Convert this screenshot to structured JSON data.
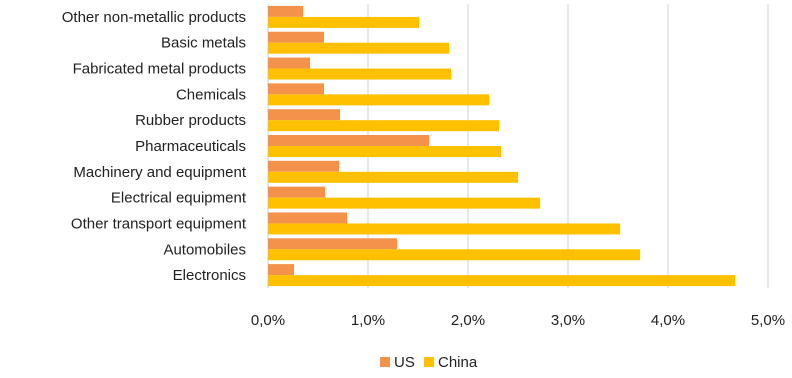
{
  "chart_data": {
    "type": "bar",
    "orientation": "horizontal",
    "categories": [
      "Other non-metallic products",
      "Basic metals",
      "Fabricated metal products",
      "Chemicals",
      "Rubber products",
      "Pharmaceuticals",
      "Machinery and equipment",
      "Electrical equipment",
      "Other transport equipment",
      "Automobiles",
      "Electronics"
    ],
    "series": [
      {
        "name": "US",
        "color": "#F4924B",
        "values": [
          0.35,
          0.56,
          0.42,
          0.56,
          0.72,
          1.61,
          0.71,
          0.57,
          0.79,
          1.29,
          0.26
        ]
      },
      {
        "name": "China",
        "color": "#FFC000",
        "values": [
          1.51,
          1.81,
          1.83,
          2.21,
          2.31,
          2.33,
          2.5,
          2.72,
          3.52,
          3.72,
          4.67
        ]
      }
    ],
    "x_ticks": [
      "0,0%",
      "1,0%",
      "2,0%",
      "3,0%",
      "4,0%",
      "5,0%"
    ],
    "xlim": [
      0,
      5
    ],
    "grid": true,
    "legend_position": "bottom",
    "gridline_color": "#d9d9d9"
  }
}
